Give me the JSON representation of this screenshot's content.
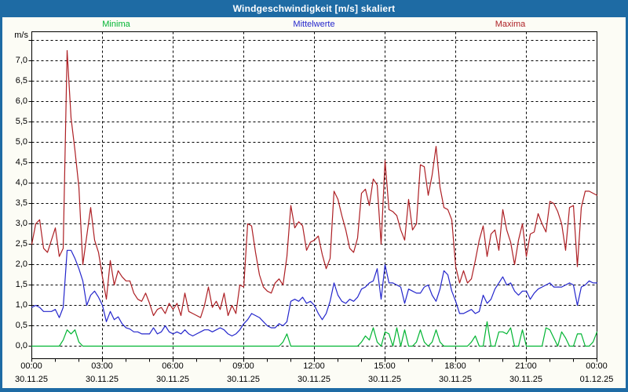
{
  "window": {
    "title": "Windgeschwindigkeit [m/s] skaliert"
  },
  "colors": {
    "frame": "#1e6ba4",
    "titlebar": "#1e6ba4",
    "title_text": "#ffffff",
    "background": "#fcfcf5",
    "plot_bg": "#ffffff",
    "grid": "#000000",
    "minima": "#00b432",
    "mittelwerte": "#2426cc",
    "maxima": "#ad1f24"
  },
  "legend": [
    {
      "label": "Minima",
      "color": "#00b432"
    },
    {
      "label": "Mittelwerte",
      "color": "#2426cc"
    },
    {
      "label": "Maxima",
      "color": "#ad1f24"
    }
  ],
  "y_axis": {
    "unit_label": "m/s",
    "tick_labels": [
      "7,0",
      "6,5",
      "6,0",
      "5,5",
      "5,0",
      "4,5",
      "4,0",
      "3,5",
      "3,0",
      "2,5",
      "2,0",
      "1,5",
      "1,0",
      "0,5",
      "0,0"
    ],
    "tick_values": [
      7.0,
      6.5,
      6.0,
      5.5,
      5.0,
      4.5,
      4.0,
      3.5,
      3.0,
      2.5,
      2.0,
      1.5,
      1.0,
      0.5,
      0.0
    ]
  },
  "x_axis": {
    "tick_times": [
      "00:00",
      "03:00",
      "06:00",
      "09:00",
      "12:00",
      "15:00",
      "18:00",
      "21:00",
      "00:00"
    ],
    "tick_dates": [
      "30.11.25",
      "30.11.25",
      "30.11.25",
      "30.11.25",
      "30.11.25",
      "30.11.25",
      "30.11.25",
      "30.11.25",
      "01.12.25"
    ]
  },
  "chart_data": {
    "type": "line",
    "title": "Windgeschwindigkeit [m/s] skaliert",
    "xlabel": "",
    "ylabel": "m/s",
    "ylim": [
      0,
      7.7
    ],
    "x_range_hours": [
      0,
      24
    ],
    "x_start_minutes": 0,
    "x_step_minutes": 10,
    "grid": "dashed black, horizontal every 0.5 m/s (0.0-7.5), vertical every 3 h",
    "legend_position": "top",
    "note": "values in m/s, read from plot at 10-minute resolution (approximate)",
    "series": [
      {
        "name": "Minima",
        "color": "#00b432",
        "values": [
          0,
          0,
          0,
          0,
          0,
          0,
          0,
          0,
          0.15,
          0.4,
          0.3,
          0.4,
          0.1,
          0,
          0,
          0,
          0,
          0,
          0,
          0,
          0,
          0,
          0,
          0,
          0,
          0,
          0,
          0,
          0,
          0,
          0,
          0,
          0,
          0,
          0,
          0,
          0,
          0,
          0,
          0,
          0,
          0,
          0,
          0,
          0,
          0,
          0,
          0,
          0,
          0,
          0,
          0,
          0,
          0,
          0,
          0,
          0,
          0,
          0,
          0,
          0,
          0,
          0,
          0,
          0.1,
          0.3,
          0,
          0,
          0,
          0,
          0,
          0,
          0,
          0,
          0,
          0,
          0,
          0,
          0,
          0,
          0,
          0,
          0,
          0,
          0.1,
          0.25,
          0.15,
          0.45,
          0.1,
          0,
          0.35,
          0.3,
          0,
          0.45,
          0,
          0.4,
          0,
          0,
          0.1,
          0.4,
          0.1,
          0,
          0.1,
          0.4,
          0.1,
          0,
          0,
          0,
          0,
          0,
          0,
          0,
          0.1,
          0.25,
          0,
          0,
          0.6,
          0,
          0,
          0.35,
          0.35,
          0.3,
          0.45,
          0,
          0,
          0.4,
          0,
          0,
          0,
          0,
          0,
          0.45,
          0.4,
          0.2,
          0,
          0.35,
          0.2,
          0,
          0,
          0.3,
          0.3,
          0,
          0,
          0.1,
          0.35
        ]
      },
      {
        "name": "Mittelwerte",
        "color": "#2426cc",
        "values": [
          0.95,
          1.0,
          0.95,
          0.85,
          0.85,
          0.85,
          0.9,
          0.7,
          0.95,
          2.35,
          2.35,
          2.15,
          1.9,
          1.6,
          1.0,
          1.25,
          1.35,
          1.2,
          1.0,
          0.6,
          0.85,
          0.65,
          0.72,
          0.55,
          0.45,
          0.42,
          0.35,
          0.35,
          0.3,
          0.3,
          0.3,
          0.45,
          0.3,
          0.35,
          0.5,
          0.35,
          0.3,
          0.35,
          0.3,
          0.4,
          0.3,
          0.25,
          0.3,
          0.35,
          0.4,
          0.4,
          0.35,
          0.4,
          0.45,
          0.4,
          0.3,
          0.25,
          0.3,
          0.4,
          0.55,
          0.65,
          0.8,
          0.75,
          0.7,
          0.6,
          0.5,
          0.45,
          0.45,
          0.55,
          0.5,
          0.6,
          1.1,
          1.15,
          1.1,
          1.2,
          1.05,
          1.1,
          1.0,
          0.8,
          0.65,
          0.8,
          1.1,
          1.55,
          1.25,
          1.1,
          1.05,
          1.15,
          1.1,
          1.2,
          1.4,
          1.45,
          1.55,
          1.6,
          1.9,
          1.15,
          2.0,
          1.55,
          1.55,
          1.5,
          1.45,
          1.05,
          1.4,
          1.35,
          1.3,
          1.3,
          1.45,
          1.5,
          1.25,
          1.1,
          1.4,
          1.85,
          1.75,
          1.35,
          1.1,
          0.8,
          0.8,
          0.85,
          0.9,
          0.8,
          0.85,
          1.25,
          1.05,
          1.15,
          1.4,
          1.55,
          1.7,
          1.5,
          1.55,
          1.35,
          1.25,
          1.35,
          1.35,
          1.15,
          1.3,
          1.4,
          1.45,
          1.5,
          1.55,
          1.45,
          1.45,
          1.45,
          1.5,
          1.55,
          1.5,
          1.0,
          1.45,
          1.5,
          1.6,
          1.55,
          1.55
        ]
      },
      {
        "name": "Maxima",
        "color": "#ad1f24",
        "values": [
          2.5,
          3.0,
          3.1,
          2.4,
          2.3,
          2.6,
          2.9,
          2.2,
          2.4,
          7.25,
          5.6,
          4.8,
          3.9,
          2.0,
          2.7,
          3.4,
          2.6,
          2.3,
          1.7,
          1.15,
          2.1,
          1.5,
          1.85,
          1.7,
          1.6,
          1.6,
          1.3,
          1.15,
          1.1,
          1.3,
          1.05,
          0.75,
          0.9,
          0.95,
          0.8,
          1.05,
          0.9,
          1.05,
          0.75,
          1.3,
          0.85,
          0.8,
          0.75,
          0.7,
          1.0,
          1.45,
          0.95,
          1.1,
          0.9,
          1.3,
          0.75,
          1.0,
          0.8,
          1.5,
          1.45,
          3.0,
          2.95,
          2.3,
          1.75,
          1.45,
          1.35,
          1.3,
          1.55,
          1.65,
          1.5,
          2.2,
          3.45,
          2.9,
          3.05,
          2.95,
          2.35,
          2.55,
          2.6,
          2.7,
          2.25,
          1.9,
          2.15,
          3.8,
          3.6,
          3.2,
          2.85,
          2.4,
          2.3,
          2.65,
          3.75,
          3.85,
          3.45,
          4.1,
          3.95,
          2.5,
          4.55,
          3.35,
          3.3,
          3.2,
          2.85,
          2.6,
          3.6,
          2.85,
          3.0,
          4.45,
          4.4,
          3.7,
          4.2,
          4.9,
          3.9,
          3.4,
          3.35,
          3.1,
          1.95,
          1.55,
          1.85,
          1.55,
          1.65,
          2.1,
          2.6,
          2.95,
          2.2,
          2.75,
          2.85,
          2.35,
          3.35,
          2.85,
          2.55,
          2.0,
          2.6,
          3.0,
          2.2,
          2.75,
          2.8,
          3.25,
          3.0,
          2.8,
          3.55,
          3.5,
          3.3,
          3.0,
          2.35,
          3.4,
          3.45,
          1.95,
          3.4,
          3.8,
          3.8,
          3.75,
          3.7
        ]
      }
    ]
  }
}
